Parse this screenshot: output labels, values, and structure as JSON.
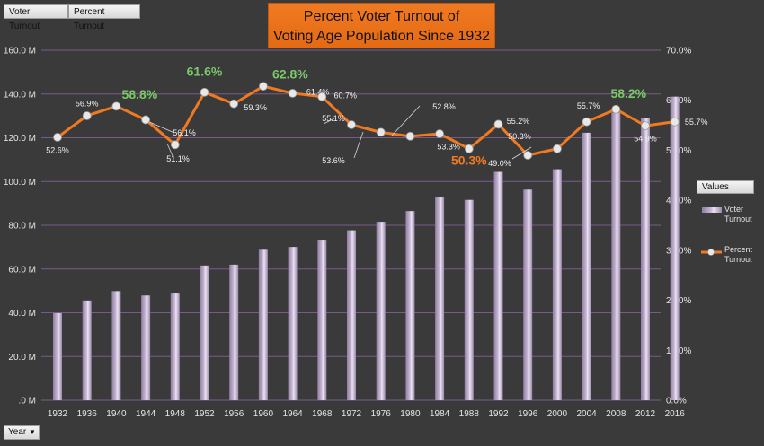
{
  "filter_buttons": [
    "Voter Turnout",
    "Percent Turnout"
  ],
  "axis_button": "Year",
  "legend": {
    "header": "Values",
    "items": [
      "Voter Turnout",
      "Percent Turnout"
    ]
  },
  "colors": {
    "background": "#3a3a3a",
    "bar": "#c7b6d4",
    "line": "#f07a22",
    "marker": "#e8e8e8",
    "gridline": "#7a5a8a",
    "highlight_green": "#7cc86a",
    "highlight_orange": "#f07a22"
  },
  "chart_data": {
    "type": "bar+line",
    "title": "Percent Voter Turnout of Voting Age Population Since 1932",
    "title_lines": [
      "Percent Voter Turnout of",
      "Voting Age Population Since 1932"
    ],
    "categories": [
      "1932",
      "1936",
      "1940",
      "1944",
      "1948",
      "1952",
      "1956",
      "1960",
      "1964",
      "1968",
      "1972",
      "1976",
      "1980",
      "1984",
      "1988",
      "1992",
      "1996",
      "2000",
      "2004",
      "2008",
      "2012",
      "2016"
    ],
    "series": [
      {
        "name": "Voter Turnout",
        "type": "bar",
        "axis": "left",
        "values": [
          39.8,
          45.6,
          49.9,
          47.9,
          48.8,
          61.6,
          62.0,
          68.8,
          70.1,
          73.0,
          77.7,
          81.6,
          86.5,
          92.7,
          91.6,
          104.4,
          96.3,
          105.6,
          122.3,
          131.5,
          129.1,
          138.8
        ],
        "unit": "M"
      },
      {
        "name": "Percent Turnout",
        "type": "line",
        "axis": "right",
        "values": [
          52.6,
          56.9,
          58.8,
          56.1,
          51.1,
          61.6,
          59.3,
          62.8,
          61.4,
          60.7,
          55.1,
          53.6,
          52.8,
          53.3,
          50.3,
          55.2,
          49.0,
          50.3,
          55.7,
          58.2,
          54.9,
          55.7
        ],
        "labels": [
          "52.6%",
          "56.9%",
          "58.8%",
          "56.1%",
          "51.1%",
          "61.6%",
          "59.3%",
          "62.8%",
          "61.4%",
          "60.7%",
          "55.1%",
          "53.6%",
          "52.8%",
          "53.3%",
          "50.3%",
          "55.2%",
          "49.0%",
          "50.3%",
          "55.7%",
          "58.2%",
          "54.9%",
          "55.7%"
        ],
        "highlights": {
          "2": "green",
          "5": "green",
          "7": "green",
          "14": "orange",
          "19": "green"
        }
      }
    ],
    "y_left": {
      "min": 0,
      "max": 160,
      "ticks": [
        ".0 M",
        "20.0 M",
        "40.0 M",
        "60.0 M",
        "80.0 M",
        "100.0 M",
        "120.0 M",
        "140.0 M",
        "160.0 M"
      ]
    },
    "y_right": {
      "min": 0,
      "max": 70,
      "ticks": [
        "0.0%",
        "10.0%",
        "20.0%",
        "30.0%",
        "40.0%",
        "50.0%",
        "60.0%",
        "70.0%"
      ]
    },
    "grid": true,
    "legend_position": "right"
  }
}
